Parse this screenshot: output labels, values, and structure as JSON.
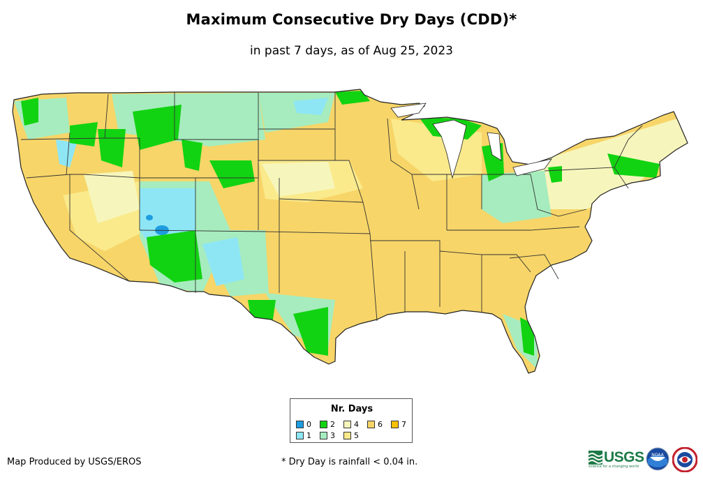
{
  "title": "Maximum Consecutive Dry Days (CDD)*",
  "subtitle": "in past 7 days, as of Aug 25, 2023",
  "legend": {
    "title": "Nr. Days",
    "items": [
      {
        "label": "0",
        "color": "#1e9de0"
      },
      {
        "label": "1",
        "color": "#8ee6f5"
      },
      {
        "label": "2",
        "color": "#12d312"
      },
      {
        "label": "3",
        "color": "#a6ecbe"
      },
      {
        "label": "4",
        "color": "#f6f6bc"
      },
      {
        "label": "5",
        "color": "#faea8c"
      },
      {
        "label": "6",
        "color": "#f7d568"
      },
      {
        "label": "7",
        "color": "#f8c000"
      }
    ]
  },
  "credit": "Map Produced by USGS/EROS",
  "footnote": "* Dry Day is rainfall < 0.04 in.",
  "logos": {
    "usgs": {
      "text": "USGS",
      "tagline": "science for a changing world",
      "icon": "usgs-logo"
    },
    "noaa": {
      "text": "NOAA",
      "icon": "noaa-logo"
    },
    "nws": {
      "icon": "nws-logo"
    }
  },
  "colors": {
    "base_land": "#f7d568",
    "border": "#333333"
  }
}
